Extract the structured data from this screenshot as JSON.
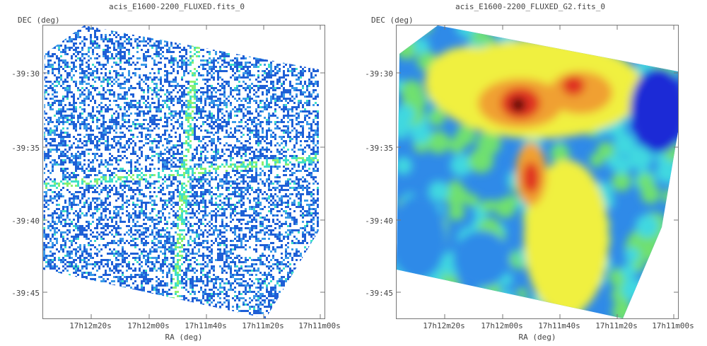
{
  "panels": [
    {
      "title": "acis_E1600-2200_FLUXED.fits_0",
      "ylabel": "DEC (deg)",
      "xlabel": "RA (deg)",
      "ra_ticks": [
        "17h12m20s",
        "17h12m00s",
        "17h11m40s",
        "17h11m20s",
        "17h11m00s"
      ],
      "dec_ticks": [
        "-39:30",
        "-39:35",
        "-39:40",
        "-39:45"
      ],
      "image_style": "sparse-counts",
      "colormap": [
        "#ffffff",
        "#1f5fd6",
        "#3a9ae8",
        "#3fe0c8",
        "#8cf070"
      ]
    },
    {
      "title": "acis_E1600-2200_FLUXED_G2.fits_0",
      "ylabel": "DEC (deg)",
      "xlabel": "RA (deg)",
      "ra_ticks": [
        "17h12m20s",
        "17h12m00s",
        "17h11m40s",
        "17h11m20s",
        "17h11m00s"
      ],
      "dec_ticks": [
        "-39:30",
        "-39:35",
        "-39:40",
        "-39:45"
      ],
      "image_style": "smoothed-rainbow",
      "colormap": [
        "#1f2bd6",
        "#2f8ae8",
        "#3fd8e0",
        "#6fe070",
        "#f0f040",
        "#f0a030",
        "#e03020",
        "#400000"
      ]
    }
  ]
}
